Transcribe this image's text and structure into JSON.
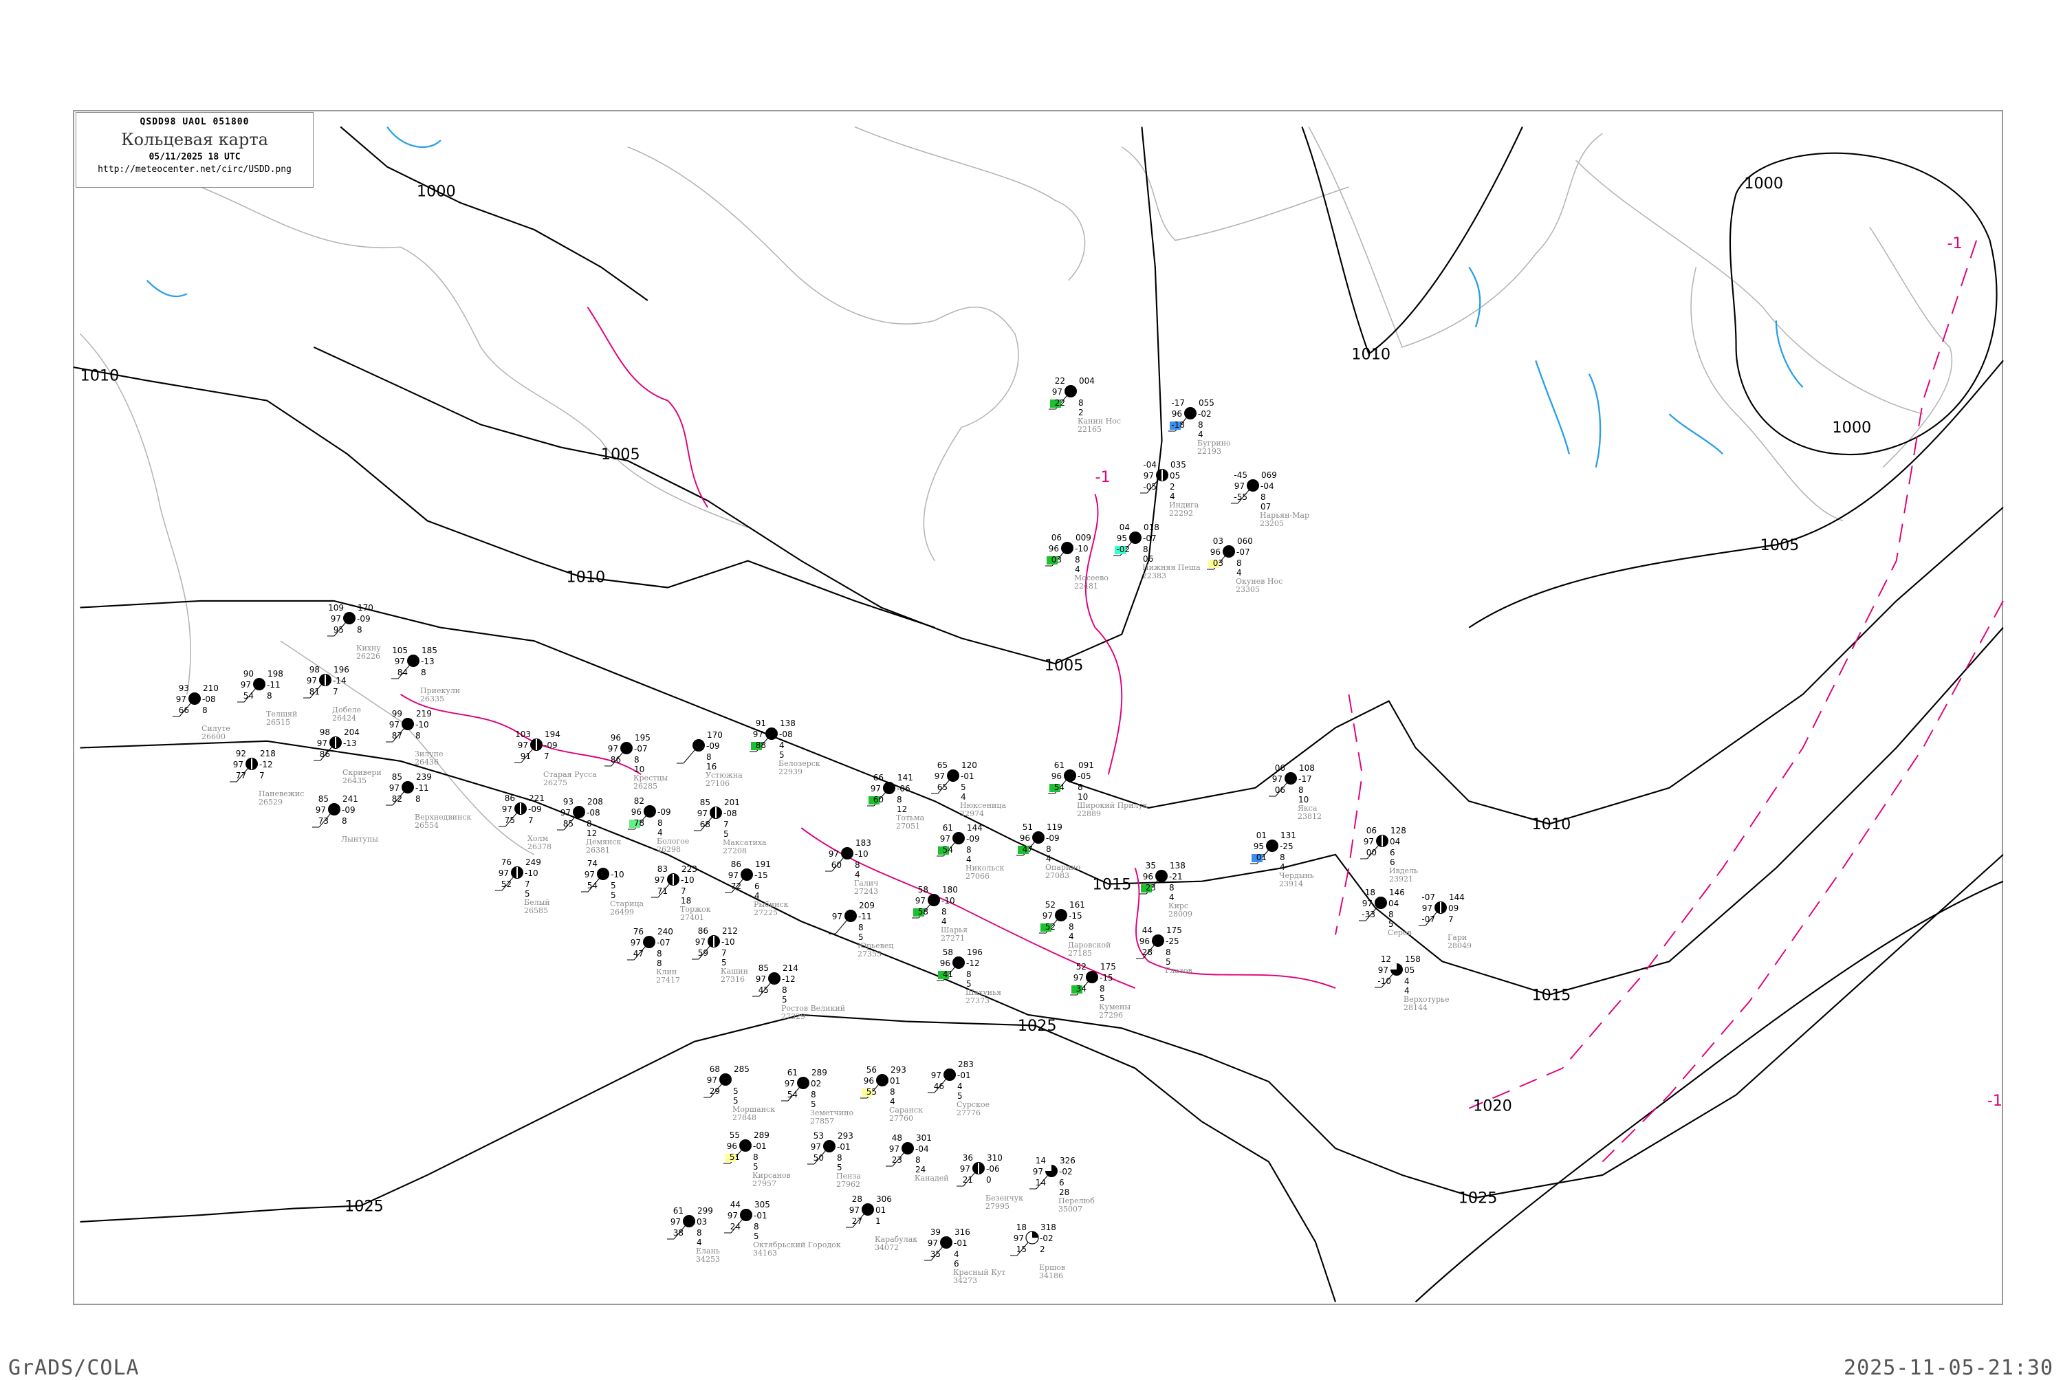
{
  "header": {
    "code": "QSDD98   UAOL   051800",
    "title": "Кольцевая карта",
    "date": "05/11/2025 18 UTC",
    "url": "http://meteocenter.net/circ/USDD.png"
  },
  "footer": {
    "software": "GrADS/COLA",
    "timestamp": "2025-11-05-21:30"
  },
  "colors": {
    "isobar": "#000000",
    "isotherm": "#e0007a",
    "coastline": "#b4b4b4",
    "river": "#2aa0e6",
    "station_name": "#8a8a8a",
    "precip_green": "#1dc12f",
    "precip_blue": "#3a8ff0",
    "precip_yellow": "#ffff99",
    "precip_cyan": "#33ffcc"
  },
  "isobar_labels": [
    "1000",
    "1000",
    "1000",
    "1005",
    "1005",
    "1005",
    "1010",
    "1010",
    "1010",
    "1010",
    "1015",
    "1015",
    "1020",
    "1025",
    "1025",
    "1025"
  ],
  "isotherm_labels": [
    "-1",
    "-1",
    "-1"
  ],
  "stations": [
    {
      "name": "Тотьма",
      "id": "27051",
      "t": "66",
      "vis": "97",
      "td": "60",
      "p": "141",
      "tend": "-06",
      "c": "8",
      "h": "12",
      "cover": "full",
      "sq": "green"
    },
    {
      "name": "Нюксеница",
      "id": "22974",
      "t": "65",
      "vis": "97",
      "td": "65",
      "p": "120",
      "tend": "-01",
      "c": "5",
      "h": "4",
      "cover": "full",
      "sq": ""
    },
    {
      "name": "Широкий Прилук",
      "id": "22889",
      "t": "61",
      "vis": "96",
      "td": "54",
      "p": "091",
      "tend": "-05",
      "c": "8",
      "h": "10",
      "cover": "full",
      "sq": "green"
    },
    {
      "name": "Никольск",
      "id": "27066",
      "t": "61",
      "vis": "97",
      "td": "54",
      "p": "144",
      "tend": "-09",
      "c": "8",
      "h": "4",
      "cover": "full",
      "sq": "green"
    },
    {
      "name": "Опарино",
      "id": "27083",
      "t": "51",
      "vis": "96",
      "td": "47",
      "p": "119",
      "tend": "-09",
      "c": "8",
      "h": "4",
      "cover": "full",
      "sq": "green"
    },
    {
      "name": "Шарья",
      "id": "27271",
      "t": "58",
      "vis": "97",
      "td": "58",
      "p": "180",
      "tend": "-10",
      "c": "8",
      "h": "4",
      "cover": "full",
      "sq": "green"
    },
    {
      "name": "Кирс",
      "id": "28009",
      "t": "35",
      "vis": "96",
      "td": "23",
      "p": "138",
      "tend": "-21",
      "c": "8",
      "h": "4",
      "cover": "full",
      "sq": "green"
    },
    {
      "name": "Даровской",
      "id": "27185",
      "t": "52",
      "vis": "97",
      "td": "52",
      "p": "161",
      "tend": "-15",
      "c": "8",
      "h": "4",
      "cover": "full",
      "sq": "green"
    },
    {
      "name": "Кумены",
      "id": "27296",
      "t": "52",
      "vis": "97",
      "td": "34",
      "p": "175",
      "tend": "-15",
      "c": "8",
      "h": "5",
      "cover": "full",
      "sq": "green"
    },
    {
      "name": "Шахунья",
      "id": "27373",
      "t": "58",
      "vis": "96",
      "td": "41",
      "p": "196",
      "tend": "-12",
      "c": "8",
      "h": "5",
      "cover": "full",
      "sq": "green"
    },
    {
      "name": "Галич",
      "id": "27243",
      "t": "",
      "vis": "97",
      "td": "60",
      "p": "183",
      "tend": "-10",
      "c": "8",
      "h": "4",
      "cover": "full",
      "sq": ""
    },
    {
      "name": "Юрьевец",
      "id": "27355",
      "t": "",
      "vis": "97",
      "td": "",
      "p": "209",
      "tend": "-11",
      "c": "8",
      "h": "5",
      "cover": "full",
      "sq": ""
    },
    {
      "name": "Глазов",
      "id": "",
      "t": "44",
      "vis": "96",
      "td": "28",
      "p": "175",
      "tend": "-25",
      "c": "8",
      "h": "5",
      "cover": "full",
      "sq": ""
    },
    {
      "name": "Старая Русса",
      "id": "26275",
      "t": "103",
      "vis": "97",
      "td": "91",
      "p": "194",
      "tend": "-09",
      "c": "7",
      "h": "",
      "cover": "half",
      "sq": ""
    },
    {
      "name": "Крестцы",
      "id": "26285",
      "t": "96",
      "vis": "97",
      "td": "86",
      "p": "195",
      "tend": "-07",
      "c": "8",
      "h": "10",
      "cover": "full",
      "sq": ""
    },
    {
      "name": "Холм",
      "id": "26378",
      "t": "86",
      "vis": "97",
      "td": "75",
      "p": "221",
      "tend": "-09",
      "c": "7",
      "h": "",
      "cover": "half",
      "sq": ""
    },
    {
      "name": "Демянск",
      "id": "26381",
      "t": "93",
      "vis": "97",
      "td": "85",
      "p": "208",
      "tend": "-08",
      "c": "8",
      "h": "12",
      "cover": "full",
      "sq": ""
    },
    {
      "name": "Бологое",
      "id": "26298",
      "t": "82",
      "vis": "96",
      "td": "78",
      "p": "",
      "tend": "-09",
      "c": "8",
      "h": "4",
      "cover": "full",
      "sq": "lightgreen"
    },
    {
      "name": "Максатиха",
      "id": "27208",
      "t": "85",
      "vis": "97",
      "td": "68",
      "p": "201",
      "tend": "-08",
      "c": "7",
      "h": "5",
      "cover": "half",
      "sq": ""
    },
    {
      "name": "Устюжна",
      "id": "27106",
      "t": "",
      "vis": "",
      "td": "",
      "p": "170",
      "tend": "-09",
      "c": "8",
      "h": "16",
      "cover": "full",
      "sq": ""
    },
    {
      "name": "Белозерск",
      "id": "22939",
      "t": "91",
      "vis": "97",
      "td": "88",
      "p": "138",
      "tend": "-08",
      "c": "4",
      "h": "5",
      "cover": "full",
      "sq": "green"
    },
    {
      "name": "Рыбинск",
      "id": "27225",
      "t": "86",
      "vis": "97",
      "td": "72",
      "p": "191",
      "tend": "-15",
      "c": "6",
      "h": "4",
      "cover": "full",
      "sq": ""
    },
    {
      "name": "Белый",
      "id": "26585",
      "t": "76",
      "vis": "97",
      "td": "52",
      "p": "249",
      "tend": "-10",
      "c": "7",
      "h": "5",
      "cover": "half",
      "sq": ""
    },
    {
      "name": "Старица",
      "id": "26499",
      "t": "74",
      "vis": "97",
      "td": "54",
      "p": "",
      "tend": "-10",
      "c": "5",
      "h": "5",
      "cover": "full",
      "sq": ""
    },
    {
      "name": "Торжок",
      "id": "27401",
      "t": "83",
      "vis": "97",
      "td": "71",
      "p": "223",
      "tend": "-10",
      "c": "7",
      "h": "18",
      "cover": "half",
      "sq": ""
    },
    {
      "name": "Кашин",
      "id": "27316",
      "t": "86",
      "vis": "97",
      "td": "59",
      "p": "212",
      "tend": "-10",
      "c": "7",
      "h": "5",
      "cover": "half",
      "sq": ""
    },
    {
      "name": "Ростов Великий",
      "id": "27329",
      "t": "85",
      "vis": "97",
      "td": "45",
      "p": "214",
      "tend": "-12",
      "c": "8",
      "h": "5",
      "cover": "full",
      "sq": ""
    },
    {
      "name": "Клин",
      "id": "27417",
      "t": "76",
      "vis": "97",
      "td": "47",
      "p": "240",
      "tend": "-07",
      "c": "8",
      "h": "8",
      "cover": "full",
      "sq": ""
    },
    {
      "name": "Канин Нос",
      "id": "22165",
      "t": "22",
      "vis": "97",
      "td": "22",
      "p": "004",
      "tend": "",
      "c": "8",
      "h": "2",
      "cover": "full",
      "sq": "green"
    },
    {
      "name": "Бугрино",
      "id": "22193",
      "t": "-17",
      "vis": "96",
      "td": "-18",
      "p": "055",
      "tend": "-02",
      "c": "8",
      "h": "4",
      "cover": "full",
      "sq": "blue"
    },
    {
      "name": "Индига",
      "id": "22292",
      "t": "-04",
      "vis": "97",
      "td": "-05",
      "p": "035",
      "tend": "05",
      "c": "2",
      "h": "4",
      "cover": "half",
      "sq": ""
    },
    {
      "name": "Нарьян-Мар",
      "id": "23205",
      "t": "-45",
      "vis": "97",
      "td": "-55",
      "p": "069",
      "tend": "-04",
      "c": "8",
      "h": "07",
      "cover": "full",
      "sq": ""
    },
    {
      "name": "Нижняя Пеша",
      "id": "22383",
      "t": "04",
      "vis": "95",
      "td": "-02",
      "p": "018",
      "tend": "-07",
      "c": "8",
      "h": "06",
      "cover": "full",
      "sq": "cyan"
    },
    {
      "name": "Мосеево",
      "id": "22481",
      "t": "06",
      "vis": "96",
      "td": "03",
      "p": "009",
      "tend": "-10",
      "c": "8",
      "h": "4",
      "cover": "full",
      "sq": "green"
    },
    {
      "name": "Окунев Нос",
      "id": "23305",
      "t": "03",
      "vis": "96",
      "td": "03",
      "p": "060",
      "tend": "-07",
      "c": "8",
      "h": "4",
      "cover": "full",
      "sq": "yellow"
    },
    {
      "name": "Силуте",
      "id": "26600",
      "t": "93",
      "vis": "97",
      "td": "66",
      "p": "210",
      "tend": "-08",
      "c": "8",
      "h": "",
      "cover": "full",
      "sq": ""
    },
    {
      "name": "Телшяй",
      "id": "26515",
      "t": "90",
      "vis": "97",
      "td": "54",
      "p": "198",
      "tend": "-11",
      "c": "8",
      "h": "",
      "cover": "full",
      "sq": ""
    },
    {
      "name": "Добеле",
      "id": "26424",
      "t": "98",
      "vis": "97",
      "td": "81",
      "p": "196",
      "tend": "-14",
      "c": "7",
      "h": "",
      "cover": "half",
      "sq": ""
    },
    {
      "name": "Скривери",
      "id": "26435",
      "t": "98",
      "vis": "97",
      "td": "86",
      "p": "204",
      "tend": "-13",
      "c": "",
      "h": "",
      "cover": "half",
      "sq": ""
    },
    {
      "name": "Паневежис",
      "id": "26529",
      "t": "92",
      "vis": "97",
      "td": "77",
      "p": "218",
      "tend": "-12",
      "c": "7",
      "h": "",
      "cover": "half",
      "sq": ""
    },
    {
      "name": "Лынтупы",
      "id": "",
      "t": "85",
      "vis": "97",
      "td": "73",
      "p": "241",
      "tend": "-09",
      "c": "8",
      "h": "",
      "cover": "full",
      "sq": ""
    },
    {
      "name": "Верхнедвинск",
      "id": "26554",
      "t": "85",
      "vis": "97",
      "td": "82",
      "p": "239",
      "tend": "-11",
      "c": "8",
      "h": "",
      "cover": "full",
      "sq": ""
    },
    {
      "name": "Зилупе",
      "id": "26436",
      "t": "99",
      "vis": "97",
      "td": "87",
      "p": "219",
      "tend": "-10",
      "c": "8",
      "h": "",
      "cover": "full",
      "sq": ""
    },
    {
      "name": "Приекули",
      "id": "26335",
      "t": "105",
      "vis": "97",
      "td": "84",
      "p": "185",
      "tend": "-13",
      "c": "8",
      "h": "",
      "cover": "full",
      "sq": ""
    },
    {
      "name": "Кихну",
      "id": "26226",
      "t": "109",
      "vis": "97",
      "td": "95",
      "p": "170",
      "tend": "-09",
      "c": "8",
      "h": "",
      "cover": "full",
      "sq": ""
    },
    {
      "name": "Моршанск",
      "id": "27848",
      "t": "68",
      "vis": "97",
      "td": "29",
      "p": "285",
      "tend": "",
      "c": "5",
      "h": "5",
      "cover": "full",
      "sq": ""
    },
    {
      "name": "Земетчино",
      "id": "27857",
      "t": "61",
      "vis": "97",
      "td": "54",
      "p": "289",
      "tend": "02",
      "c": "8",
      "h": "5",
      "cover": "full",
      "sq": ""
    },
    {
      "name": "Саранск",
      "id": "27760",
      "t": "56",
      "vis": "96",
      "td": "55",
      "p": "293",
      "tend": "01",
      "c": "8",
      "h": "4",
      "cover": "full",
      "sq": "yellow"
    },
    {
      "name": "Сурское",
      "id": "27776",
      "t": "",
      "vis": "97",
      "td": "46",
      "p": "283",
      "tend": "-01",
      "c": "4",
      "h": "5",
      "cover": "full",
      "sq": ""
    },
    {
      "name": "Кирсанов",
      "id": "27957",
      "t": "55",
      "vis": "96",
      "td": "51",
      "p": "289",
      "tend": "-01",
      "c": "8",
      "h": "5",
      "cover": "full",
      "sq": "yellow"
    },
    {
      "name": "Пенза",
      "id": "27962",
      "t": "53",
      "vis": "97",
      "td": "50",
      "p": "293",
      "tend": "-01",
      "c": "8",
      "h": "5",
      "cover": "full",
      "sq": ""
    },
    {
      "name": "Канадей",
      "id": "",
      "t": "48",
      "vis": "97",
      "td": "23",
      "p": "301",
      "tend": "-04",
      "c": "8",
      "h": "24",
      "cover": "full",
      "sq": ""
    },
    {
      "name": "Безенчук",
      "id": "27995",
      "t": "36",
      "vis": "97",
      "td": "21",
      "p": "310",
      "tend": "-06",
      "c": "0",
      "h": "",
      "cover": "half",
      "sq": ""
    },
    {
      "name": "Карабулак",
      "id": "34072",
      "t": "28",
      "vis": "97",
      "td": "27",
      "p": "306",
      "tend": "01",
      "c": "1",
      "h": "",
      "cover": "full",
      "sq": ""
    },
    {
      "name": "Октябрьский Городок",
      "id": "34163",
      "t": "44",
      "vis": "97",
      "td": "24",
      "p": "305",
      "tend": "-01",
      "c": "8",
      "h": "5",
      "cover": "full",
      "sq": ""
    },
    {
      "name": "Елань",
      "id": "34253",
      "t": "61",
      "vis": "97",
      "td": "38",
      "p": "299",
      "tend": "03",
      "c": "8",
      "h": "4",
      "cover": "full",
      "sq": ""
    },
    {
      "name": "Красный Кут",
      "id": "34273",
      "t": "39",
      "vis": "97",
      "td": "35",
      "p": "316",
      "tend": "-01",
      "c": "4",
      "h": "6",
      "cover": "full",
      "sq": ""
    },
    {
      "name": "Ершов",
      "id": "34186",
      "t": "18",
      "vis": "97",
      "td": "15",
      "p": "318",
      "tend": "-02",
      "c": "2",
      "h": "",
      "cover": "quarter",
      "sq": ""
    },
    {
      "name": "Перелюб",
      "id": "35007",
      "t": "14",
      "vis": "97",
      "td": "14",
      "p": "326",
      "tend": "-02",
      "c": "6",
      "h": "28",
      "cover": "three",
      "sq": ""
    },
    {
      "name": "Якса",
      "id": "23812",
      "t": "06",
      "vis": "97",
      "td": "06",
      "p": "108",
      "tend": "-17",
      "c": "8",
      "h": "10",
      "cover": "full",
      "sq": ""
    },
    {
      "name": "Чердынь",
      "id": "23914",
      "t": "01",
      "vis": "95",
      "td": "01",
      "p": "131",
      "tend": "-25",
      "c": "8",
      "h": "4",
      "cover": "full",
      "sq": "blue"
    },
    {
      "name": "Ивдель",
      "id": "23921",
      "t": "06",
      "vis": "97",
      "td": "00",
      "p": "128",
      "tend": "04",
      "c": "6",
      "h": "6",
      "cover": "half",
      "sq": ""
    },
    {
      "name": "Серов",
      "id": "",
      "t": "18",
      "vis": "97",
      "td": "-33",
      "p": "146",
      "tend": "04",
      "c": "8",
      "h": "5",
      "cover": "full",
      "sq": ""
    },
    {
      "name": "Гари",
      "id": "28049",
      "t": "-07",
      "vis": "97",
      "td": "-07",
      "p": "144",
      "tend": "09",
      "c": "7",
      "h": "",
      "cover": "half",
      "sq": ""
    },
    {
      "name": "Верхотурье",
      "id": "28144",
      "t": "12",
      "vis": "97",
      "td": "-10",
      "p": "158",
      "tend": "05",
      "c": "4",
      "h": "4",
      "cover": "three",
      "sq": ""
    }
  ]
}
